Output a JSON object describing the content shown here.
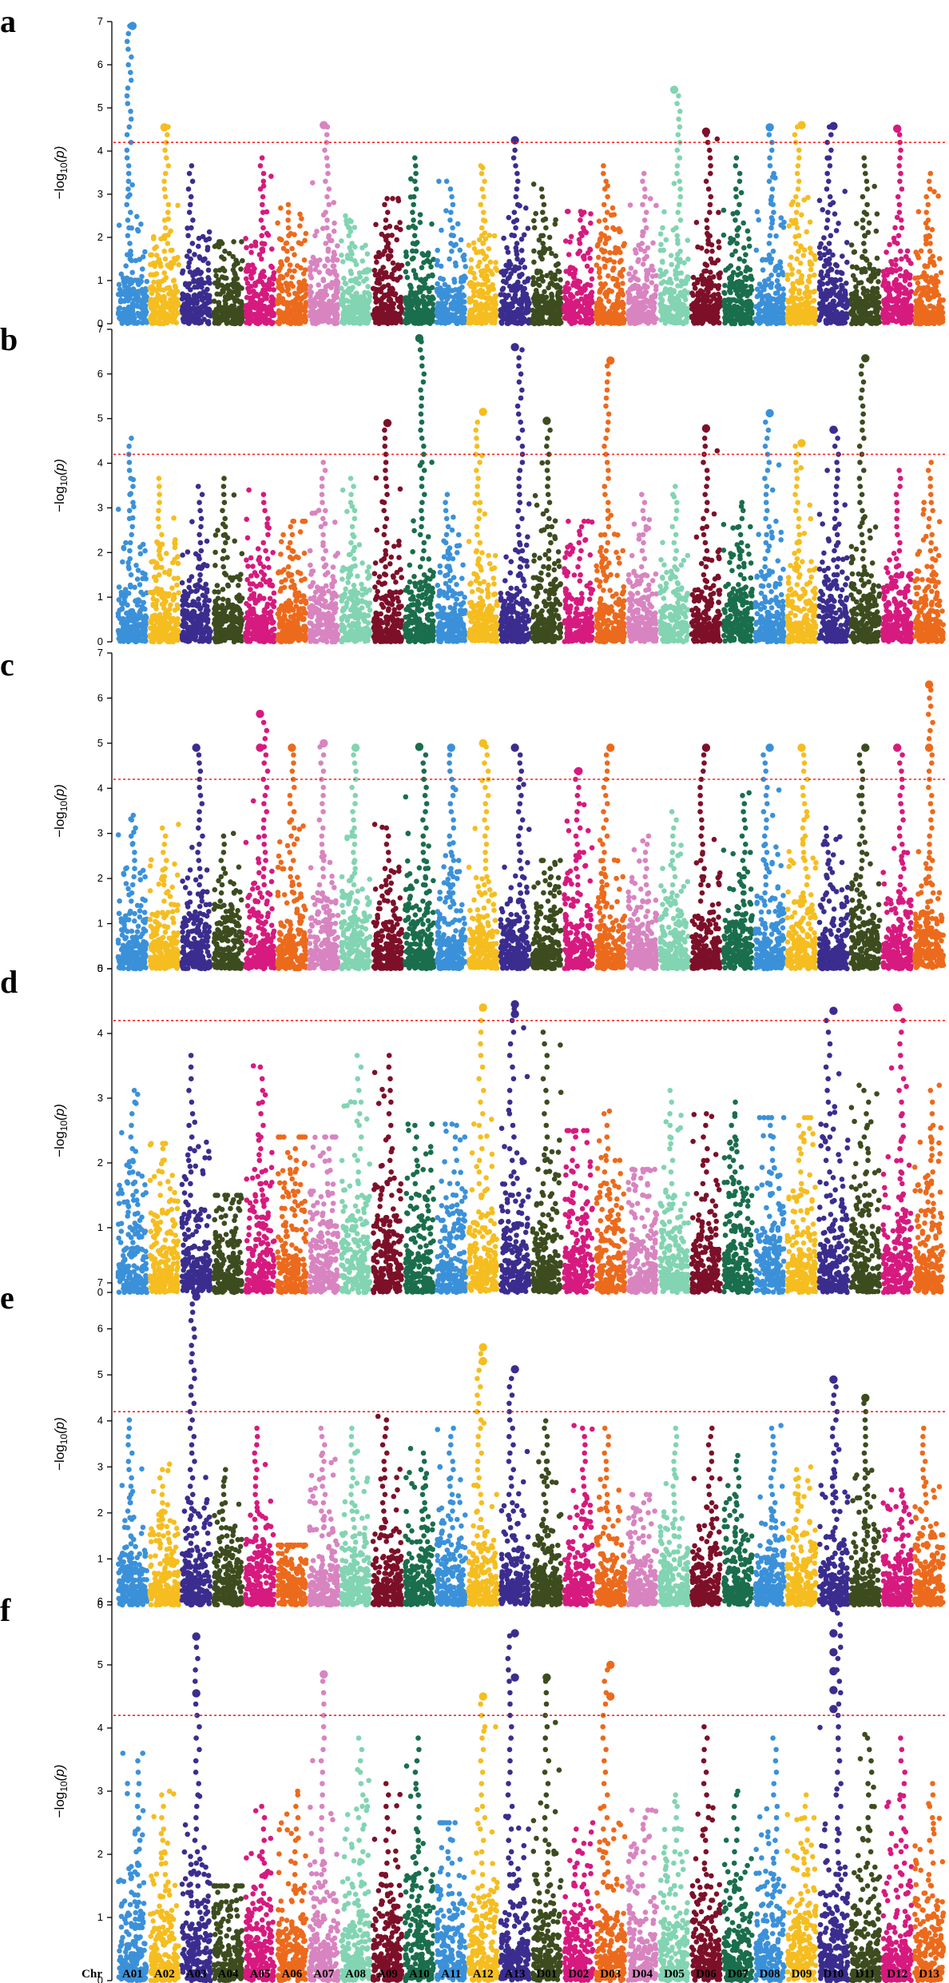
{
  "figure": {
    "panel_letters": [
      "a",
      "b",
      "c",
      "d",
      "e",
      "f"
    ],
    "xaxis_prefix": "Chr",
    "ylabel_parts": {
      "minus": "−log",
      "sub": "10",
      "arg": "(p)"
    },
    "threshold": 4.2,
    "threshold_color": "#ff2020"
  },
  "chromosomes": [
    {
      "name": "A01",
      "color": "#3b91d9"
    },
    {
      "name": "A02",
      "color": "#f5bd1f"
    },
    {
      "name": "A03",
      "color": "#3b2d8f"
    },
    {
      "name": "A04",
      "color": "#3d4c1f"
    },
    {
      "name": "A05",
      "color": "#d61a7f"
    },
    {
      "name": "A06",
      "color": "#ec6a1c"
    },
    {
      "name": "A07",
      "color": "#d884c0"
    },
    {
      "name": "A08",
      "color": "#82d4b2"
    },
    {
      "name": "A09",
      "color": "#7d1029"
    },
    {
      "name": "A10",
      "color": "#1a6e4d"
    },
    {
      "name": "A11",
      "color": "#3b91d9"
    },
    {
      "name": "A12",
      "color": "#f5bd1f"
    },
    {
      "name": "A13",
      "color": "#3b2d8f"
    },
    {
      "name": "D01",
      "color": "#3d4c1f"
    },
    {
      "name": "D02",
      "color": "#d61a7f"
    },
    {
      "name": "D03",
      "color": "#ec6a1c"
    },
    {
      "name": "D04",
      "color": "#d884c0"
    },
    {
      "name": "D05",
      "color": "#82d4b2"
    },
    {
      "name": "D06",
      "color": "#7d1029"
    },
    {
      "name": "D07",
      "color": "#1a6e4d"
    },
    {
      "name": "D08",
      "color": "#3b91d9"
    },
    {
      "name": "D09",
      "color": "#f5bd1f"
    },
    {
      "name": "D10",
      "color": "#3b2d8f"
    },
    {
      "name": "D11",
      "color": "#3d4c1f"
    },
    {
      "name": "D12",
      "color": "#d61a7f"
    },
    {
      "name": "D13",
      "color": "#ec6a1c"
    }
  ],
  "chart_data": [
    {
      "type": "scatter",
      "panel": "a",
      "ylim": [
        0,
        7
      ],
      "yticks": [
        0,
        1,
        2,
        3,
        4,
        5,
        6,
        7
      ],
      "ylabel": "−log10(p)",
      "xlabel": "Chr",
      "threshold": 4.2,
      "peaks": {
        "A01": 6.9,
        "A02": 4.6,
        "A03": 3.7,
        "A04": 1.9,
        "A05": 3.9,
        "A06": 2.8,
        "A07": 4.6,
        "A08": 2.5,
        "A09": 2.9,
        "A10": 3.9,
        "A11": 3.3,
        "A12": 3.8,
        "A13": 4.2,
        "D01": 3.3,
        "D02": 2.6,
        "D03": 3.7,
        "D04": 3.6,
        "D05": 5.4,
        "D06": 4.4,
        "D07": 4.0,
        "D08": 4.5,
        "D09": 4.6,
        "D10": 4.6,
        "D11": 4.0,
        "D12": 4.5,
        "D13": 3.6
      },
      "highlights": [
        {
          "chr": "A01",
          "y": 6.9
        },
        {
          "chr": "A02",
          "y": 4.55
        },
        {
          "chr": "A07",
          "y": 4.6
        },
        {
          "chr": "A13",
          "y": 4.25
        },
        {
          "chr": "D05",
          "y": 5.42
        },
        {
          "chr": "D06",
          "y": 4.45
        },
        {
          "chr": "D08",
          "y": 4.55
        },
        {
          "chr": "D09",
          "y": 4.6
        },
        {
          "chr": "D10",
          "y": 4.58
        },
        {
          "chr": "D12",
          "y": 4.52
        }
      ]
    },
    {
      "type": "scatter",
      "panel": "b",
      "ylim": [
        0,
        7
      ],
      "yticks": [
        0,
        1,
        2,
        3,
        4,
        5,
        6,
        7
      ],
      "ylabel": "−log10(p)",
      "xlabel": "Chr",
      "threshold": 4.2,
      "peaks": {
        "A01": 4.7,
        "A02": 3.7,
        "A03": 3.6,
        "A04": 3.7,
        "A05": 3.4,
        "A06": 2.7,
        "A07": 4.1,
        "A08": 3.8,
        "A09": 4.9,
        "A10": 6.8,
        "A11": 3.4,
        "A12": 5.1,
        "A13": 6.6,
        "D01": 4.9,
        "D02": 2.7,
        "D03": 6.3,
        "D04": 3.4,
        "D05": 3.6,
        "D06": 4.8,
        "D07": 3.3,
        "D08": 5.1,
        "D09": 4.4,
        "D10": 4.8,
        "D11": 6.3,
        "D12": 3.9,
        "D13": 4.2
      },
      "highlights": [
        {
          "chr": "A09",
          "y": 4.9
        },
        {
          "chr": "A10",
          "y": 6.8
        },
        {
          "chr": "A12",
          "y": 5.15
        },
        {
          "chr": "A13",
          "y": 6.6
        },
        {
          "chr": "D01",
          "y": 4.95
        },
        {
          "chr": "D03",
          "y": 6.3
        },
        {
          "chr": "D06",
          "y": 4.78
        },
        {
          "chr": "D08",
          "y": 5.12
        },
        {
          "chr": "D09",
          "y": 4.45
        },
        {
          "chr": "D10",
          "y": 4.75
        },
        {
          "chr": "D11",
          "y": 6.35
        }
      ]
    },
    {
      "type": "scatter",
      "panel": "c",
      "ylim": [
        0,
        7
      ],
      "yticks": [
        0,
        1,
        2,
        3,
        4,
        5,
        6,
        7
      ],
      "ylabel": "−log10(p)",
      "xlabel": "Chr",
      "threshold": 4.2,
      "peaks": {
        "A01": 3.4,
        "A02": 3.2,
        "A03": 4.9,
        "A04": 3.0,
        "A05": 5.6,
        "A06": 4.9,
        "A07": 5.0,
        "A08": 4.9,
        "A09": 3.2,
        "A10": 4.9,
        "A11": 4.9,
        "A12": 5.0,
        "A13": 4.9,
        "D01": 2.4,
        "D02": 4.4,
        "D03": 4.9,
        "D04": 3.1,
        "D05": 3.6,
        "D06": 4.9,
        "D07": 3.9,
        "D08": 4.9,
        "D09": 4.9,
        "D10": 3.2,
        "D11": 4.9,
        "D12": 4.9,
        "D13": 6.3
      },
      "highlights": [
        {
          "chr": "A03",
          "y": 4.9
        },
        {
          "chr": "A05",
          "y": 5.65
        },
        {
          "chr": "A05",
          "y": 4.9
        },
        {
          "chr": "A06",
          "y": 4.9
        },
        {
          "chr": "A07",
          "y": 5.0
        },
        {
          "chr": "A08",
          "y": 4.9
        },
        {
          "chr": "A10",
          "y": 4.92
        },
        {
          "chr": "A11",
          "y": 4.9
        },
        {
          "chr": "A12",
          "y": 5.0
        },
        {
          "chr": "A13",
          "y": 4.9
        },
        {
          "chr": "D02",
          "y": 4.38
        },
        {
          "chr": "D03",
          "y": 4.9
        },
        {
          "chr": "D06",
          "y": 4.9
        },
        {
          "chr": "D08",
          "y": 4.9
        },
        {
          "chr": "D09",
          "y": 4.9
        },
        {
          "chr": "D11",
          "y": 4.9
        },
        {
          "chr": "D12",
          "y": 4.9
        },
        {
          "chr": "D13",
          "y": 6.3
        },
        {
          "chr": "D13",
          "y": 4.9
        }
      ]
    },
    {
      "type": "scatter",
      "panel": "d",
      "ylim": [
        0,
        5
      ],
      "yticks": [
        0,
        1,
        2,
        3,
        4,
        5
      ],
      "ylabel": "−log10(p)",
      "xlabel": "Chr",
      "threshold": 4.2,
      "peaks": {
        "A01": 3.3,
        "A02": 2.3,
        "A03": 3.8,
        "A04": 1.5,
        "A05": 3.5,
        "A06": 2.4,
        "A07": 2.4,
        "A08": 3.7,
        "A09": 3.7,
        "A10": 2.6,
        "A11": 2.6,
        "A12": 4.4,
        "A13": 4.45,
        "D01": 4.1,
        "D02": 2.5,
        "D03": 2.8,
        "D04": 1.9,
        "D05": 3.2,
        "D06": 2.9,
        "D07": 3.0,
        "D08": 2.7,
        "D09": 2.7,
        "D10": 4.35,
        "D11": 3.2,
        "D12": 4.4,
        "D13": 3.2
      },
      "highlights": [
        {
          "chr": "A12",
          "y": 4.4
        },
        {
          "chr": "A13",
          "y": 4.45
        },
        {
          "chr": "A13",
          "y": 4.3
        },
        {
          "chr": "D10",
          "y": 4.35
        },
        {
          "chr": "D12",
          "y": 4.4
        }
      ]
    },
    {
      "type": "scatter",
      "panel": "e",
      "ylim": [
        0,
        7
      ],
      "yticks": [
        0,
        1,
        2,
        3,
        4,
        5,
        6,
        7
      ],
      "ylabel": "−log10(p)",
      "xlabel": "Chr",
      "threshold": 4.2,
      "peaks": {
        "A01": 4.1,
        "A02": 3.1,
        "A03": 6.7,
        "A04": 3.1,
        "A05": 3.9,
        "A06": 1.3,
        "A07": 4.0,
        "A08": 4.0,
        "A09": 4.1,
        "A10": 3.4,
        "A11": 3.9,
        "A12": 5.6,
        "A13": 5.1,
        "D01": 4.0,
        "D02": 3.9,
        "D03": 4.0,
        "D04": 2.4,
        "D05": 4.0,
        "D06": 3.9,
        "D07": 3.3,
        "D08": 3.9,
        "D09": 3.0,
        "D10": 4.9,
        "D11": 4.5,
        "D12": 2.5,
        "D13": 3.9
      },
      "highlights": [
        {
          "chr": "A03",
          "y": 6.7
        },
        {
          "chr": "A12",
          "y": 5.6
        },
        {
          "chr": "A12",
          "y": 5.3
        },
        {
          "chr": "A13",
          "y": 5.12
        },
        {
          "chr": "D10",
          "y": 4.9
        },
        {
          "chr": "D11",
          "y": 4.5
        }
      ]
    },
    {
      "type": "scatter",
      "panel": "f",
      "ylim": [
        0,
        6
      ],
      "yticks": [
        0,
        1,
        2,
        3,
        4,
        5,
        6
      ],
      "ylabel": "−log10(p)",
      "xlabel": "Chr",
      "threshold": 4.2,
      "peaks": {
        "A01": 3.6,
        "A02": 3.0,
        "A03": 5.45,
        "A04": 1.5,
        "A05": 2.8,
        "A06": 3.0,
        "A07": 4.85,
        "A08": 3.9,
        "A09": 3.3,
        "A10": 3.95,
        "A11": 2.5,
        "A12": 4.5,
        "A13": 5.5,
        "D01": 4.8,
        "D02": 2.5,
        "D03": 5.0,
        "D04": 2.7,
        "D05": 3.0,
        "D06": 4.1,
        "D07": 3.0,
        "D08": 3.9,
        "D09": 3.0,
        "D10": 5.9,
        "D11": 3.9,
        "D12": 3.9,
        "D13": 3.3
      },
      "highlights": [
        {
          "chr": "A03",
          "y": 5.45
        },
        {
          "chr": "A03",
          "y": 4.55
        },
        {
          "chr": "A07",
          "y": 4.85
        },
        {
          "chr": "A12",
          "y": 4.5
        },
        {
          "chr": "A13",
          "y": 5.5
        },
        {
          "chr": "A13",
          "y": 4.8
        },
        {
          "chr": "D01",
          "y": 4.8
        },
        {
          "chr": "D03",
          "y": 5.0
        },
        {
          "chr": "D03",
          "y": 4.5
        },
        {
          "chr": "D10",
          "y": 5.9
        },
        {
          "chr": "D10",
          "y": 5.5
        },
        {
          "chr": "D10",
          "y": 5.2
        },
        {
          "chr": "D10",
          "y": 4.9
        },
        {
          "chr": "D10",
          "y": 4.6
        },
        {
          "chr": "D10",
          "y": 4.3
        }
      ]
    }
  ]
}
